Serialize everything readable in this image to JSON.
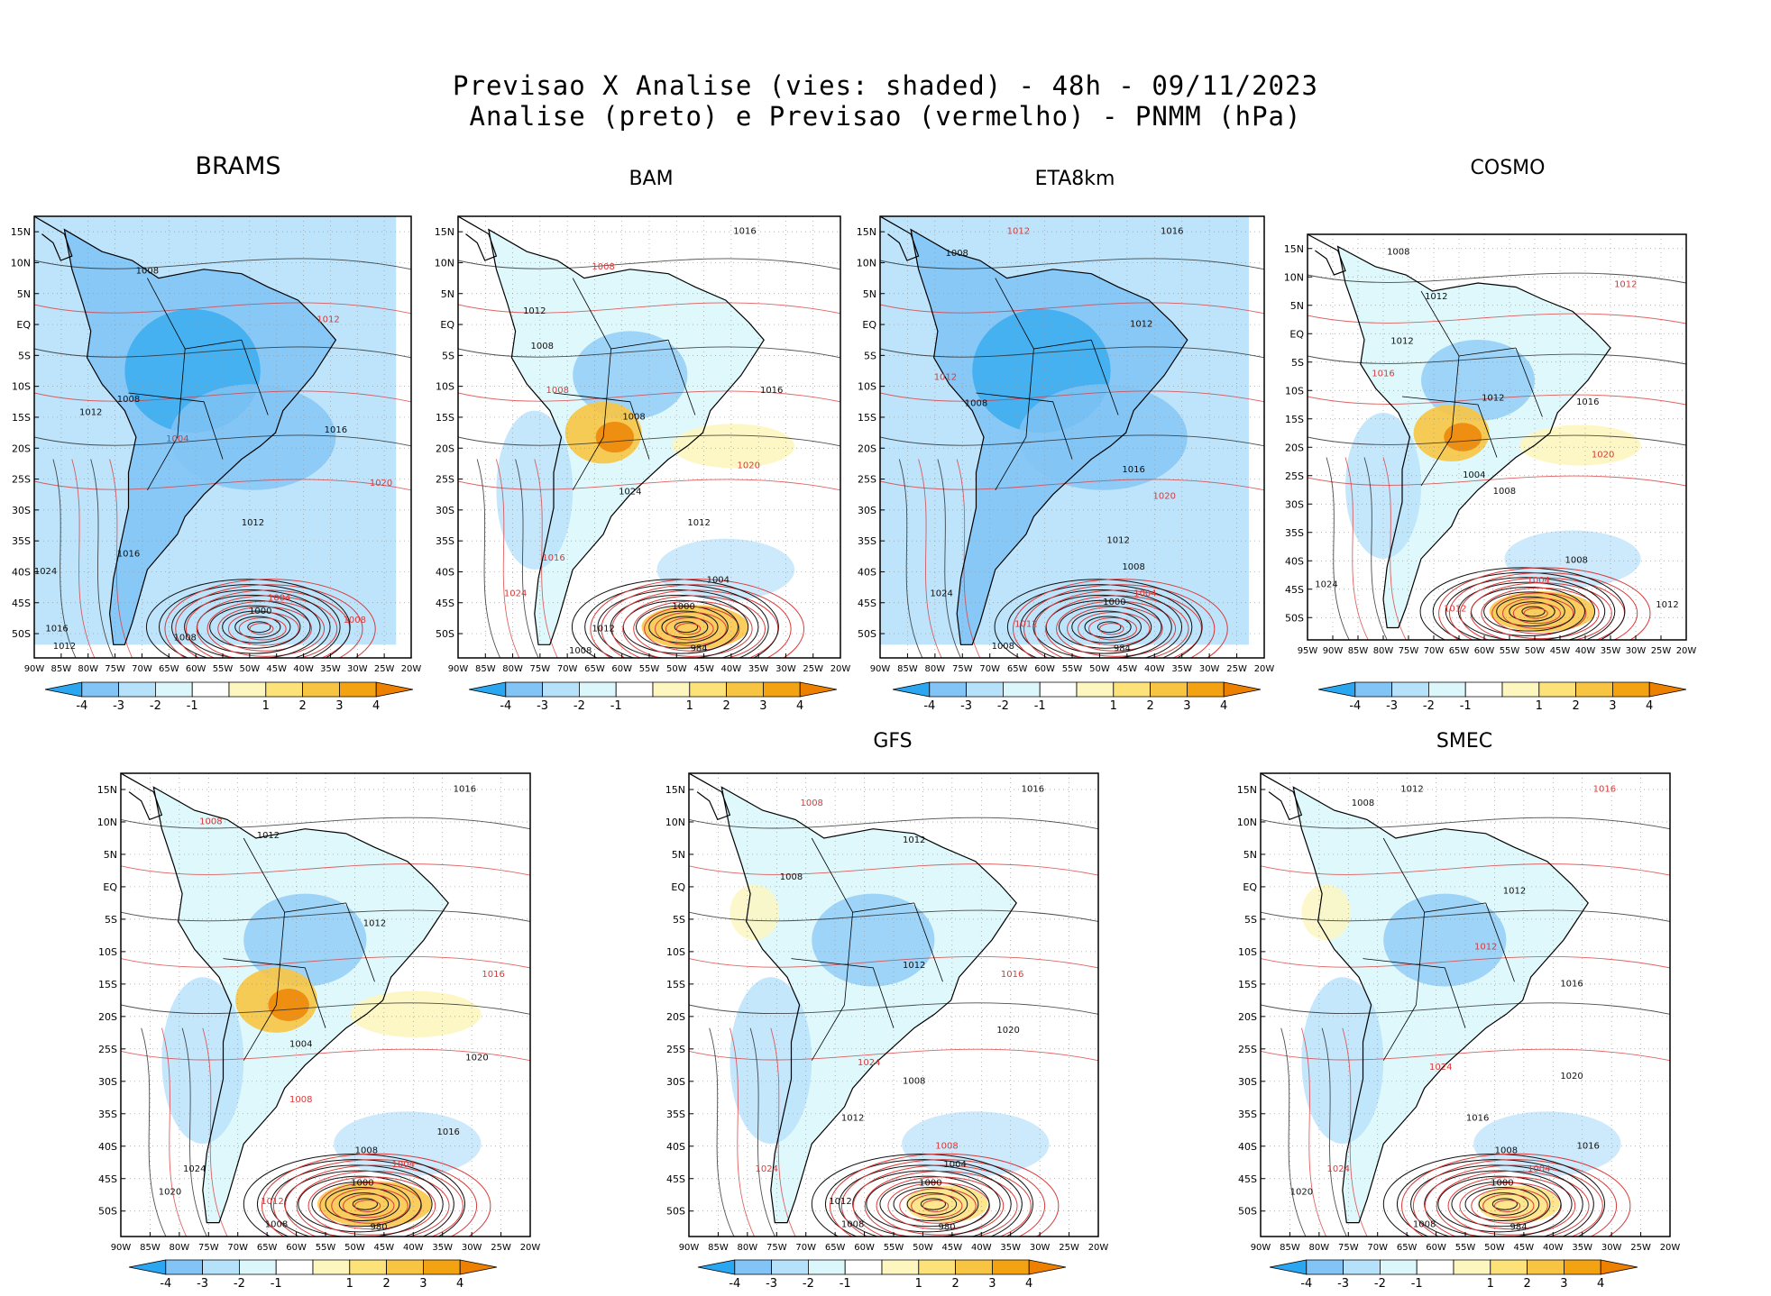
{
  "title_line1": "Previsao X Analise (vies: shaded) - 48h - 09/11/2023",
  "title_line2": "Analise (preto) e Previsao (vermelho) - PNMM (hPa)",
  "colorbar_labels": [
    "-4",
    "-3",
    "-2",
    "-1",
    "1",
    "2",
    "3",
    "4"
  ],
  "colorbar_colors": [
    "#2aa7f0",
    "#82c4f5",
    "#b6e1fb",
    "#dbf7fb",
    "#ffffff",
    "#fdf6bf",
    "#fde27a",
    "#f8c542",
    "#f3a211",
    "#ee8000"
  ],
  "lat_labels": [
    "15N",
    "10N",
    "5N",
    "EQ",
    "5S",
    "10S",
    "15S",
    "20S",
    "25S",
    "30S",
    "35S",
    "40S",
    "45S",
    "50S"
  ],
  "lon_labels_90": [
    "90W",
    "85W",
    "80W",
    "75W",
    "70W",
    "65W",
    "60W",
    "55W",
    "50W",
    "45W",
    "40W",
    "35W",
    "30W",
    "25W",
    "20W"
  ],
  "lon_labels_95": [
    "95W",
    "90W",
    "85W",
    "80W",
    "75W",
    "70W",
    "65W",
    "60W",
    "55W",
    "50W",
    "45W",
    "40W",
    "35W",
    "30W",
    "25W",
    "20W"
  ],
  "panels": [
    {
      "name": "BRAMS",
      "bias": "blue",
      "low": "",
      "labels": [
        [
          "1008",
          0.3,
          0.13
        ],
        [
          "1012",
          0.78,
          0.24
        ],
        [
          "1012",
          0.15,
          0.45
        ],
        [
          "1008",
          0.25,
          0.42
        ],
        [
          "1004",
          0.38,
          0.51
        ],
        [
          "1016",
          0.8,
          0.49
        ],
        [
          "1012",
          0.58,
          0.7
        ],
        [
          "1020",
          0.92,
          0.61
        ],
        [
          "1024",
          0.03,
          0.81
        ],
        [
          "1016",
          0.25,
          0.77
        ],
        [
          "1004",
          0.65,
          0.87
        ],
        [
          "1000",
          0.6,
          0.9
        ],
        [
          "1008",
          0.4,
          0.96
        ],
        [
          "1008",
          0.85,
          0.92
        ],
        [
          "1016",
          0.06,
          0.94
        ],
        [
          "1012",
          0.08,
          0.98
        ]
      ]
    },
    {
      "name": "BAM",
      "bias": "mixed",
      "low": "984",
      "labels": [
        [
          "1016",
          0.75,
          0.04
        ],
        [
          "1008",
          0.38,
          0.12
        ],
        [
          "1012",
          0.2,
          0.22
        ],
        [
          "1008",
          0.22,
          0.3
        ],
        [
          "1008",
          0.26,
          0.4
        ],
        [
          "1016",
          0.82,
          0.4
        ],
        [
          "1008",
          0.46,
          0.46
        ],
        [
          "1020",
          0.76,
          0.57
        ],
        [
          "1024",
          0.45,
          0.63
        ],
        [
          "1012",
          0.63,
          0.7
        ],
        [
          "1016",
          0.25,
          0.78
        ],
        [
          "1004",
          0.68,
          0.83
        ],
        [
          "1000",
          0.59,
          0.89
        ],
        [
          "1024",
          0.15,
          0.86
        ],
        [
          "1012",
          0.38,
          0.94
        ],
        [
          "1008",
          0.32,
          0.99
        ]
      ]
    },
    {
      "name": "ETA8km",
      "bias": "blue",
      "low": "984",
      "labels": [
        [
          "1016",
          0.76,
          0.04
        ],
        [
          "1012",
          0.36,
          0.04
        ],
        [
          "1008",
          0.2,
          0.09
        ],
        [
          "1012",
          0.68,
          0.25
        ],
        [
          "1012",
          0.17,
          0.37
        ],
        [
          "1008",
          0.25,
          0.43
        ],
        [
          "1016",
          0.66,
          0.58
        ],
        [
          "1020",
          0.74,
          0.64
        ],
        [
          "1012",
          0.62,
          0.74
        ],
        [
          "1008",
          0.66,
          0.8
        ],
        [
          "1004",
          0.69,
          0.86
        ],
        [
          "1000",
          0.61,
          0.88
        ],
        [
          "1024",
          0.16,
          0.86
        ],
        [
          "1012",
          0.38,
          0.93
        ],
        [
          "1008",
          0.32,
          0.98
        ]
      ]
    },
    {
      "name": "COSMO",
      "bias": "mixed",
      "low": "",
      "labels": [
        [
          "1008",
          0.24,
          0.05
        ],
        [
          "1012",
          0.84,
          0.13
        ],
        [
          "1012",
          0.34,
          0.16
        ],
        [
          "1012",
          0.25,
          0.27
        ],
        [
          "1016",
          0.2,
          0.35
        ],
        [
          "1012",
          0.49,
          0.41
        ],
        [
          "1016",
          0.74,
          0.42
        ],
        [
          "1020",
          0.78,
          0.55
        ],
        [
          "1004",
          0.44,
          0.6
        ],
        [
          "1008",
          0.52,
          0.64
        ],
        [
          "1004",
          0.61,
          0.86
        ],
        [
          "1008",
          0.71,
          0.81
        ],
        [
          "1024",
          0.05,
          0.87
        ],
        [
          "1012",
          0.39,
          0.93
        ],
        [
          "1012",
          0.95,
          0.92
        ]
      ]
    },
    {
      "name": "",
      "bias": "mixed",
      "low": "980",
      "labels": [
        [
          "1016",
          0.84,
          0.04
        ],
        [
          "1008",
          0.22,
          0.11
        ],
        [
          "1012",
          0.36,
          0.14
        ],
        [
          "1012",
          0.62,
          0.33
        ],
        [
          "1016",
          0.91,
          0.44
        ],
        [
          "1004",
          0.44,
          0.59
        ],
        [
          "1020",
          0.87,
          0.62
        ],
        [
          "1008",
          0.44,
          0.71
        ],
        [
          "1016",
          0.8,
          0.78
        ],
        [
          "1008",
          0.6,
          0.82
        ],
        [
          "1004",
          0.69,
          0.85
        ],
        [
          "1000",
          0.59,
          0.89
        ],
        [
          "1024",
          0.18,
          0.86
        ],
        [
          "1012",
          0.37,
          0.93
        ],
        [
          "1020",
          0.12,
          0.91
        ],
        [
          "1008",
          0.38,
          0.98
        ]
      ]
    },
    {
      "name": "GFS",
      "bias": "light",
      "low": "980",
      "labels": [
        [
          "1016",
          0.84,
          0.04
        ],
        [
          "1008",
          0.3,
          0.07
        ],
        [
          "1012",
          0.55,
          0.15
        ],
        [
          "1008",
          0.25,
          0.23
        ],
        [
          "1016",
          0.79,
          0.44
        ],
        [
          "1012",
          0.55,
          0.42
        ],
        [
          "1020",
          0.78,
          0.56
        ],
        [
          "1024",
          0.44,
          0.63
        ],
        [
          "1008",
          0.55,
          0.67
        ],
        [
          "1012",
          0.4,
          0.75
        ],
        [
          "1008",
          0.63,
          0.81
        ],
        [
          "1004",
          0.65,
          0.85
        ],
        [
          "1000",
          0.59,
          0.89
        ],
        [
          "1024",
          0.19,
          0.86
        ],
        [
          "1012",
          0.37,
          0.93
        ],
        [
          "1008",
          0.4,
          0.98
        ]
      ]
    },
    {
      "name": "SMEC",
      "bias": "light",
      "low": "984",
      "labels": [
        [
          "1012",
          0.37,
          0.04
        ],
        [
          "1016",
          0.84,
          0.04
        ],
        [
          "1008",
          0.25,
          0.07
        ],
        [
          "1012",
          0.62,
          0.26
        ],
        [
          "1012",
          0.55,
          0.38
        ],
        [
          "1016",
          0.76,
          0.46
        ],
        [
          "1020",
          0.76,
          0.66
        ],
        [
          "1024",
          0.44,
          0.64
        ],
        [
          "1016",
          0.53,
          0.75
        ],
        [
          "1008",
          0.6,
          0.82
        ],
        [
          "1004",
          0.68,
          0.86
        ],
        [
          "1000",
          0.59,
          0.89
        ],
        [
          "1016",
          0.8,
          0.81
        ],
        [
          "1024",
          0.19,
          0.86
        ],
        [
          "1020",
          0.1,
          0.91
        ],
        [
          "1008",
          0.4,
          0.98
        ]
      ]
    }
  ]
}
